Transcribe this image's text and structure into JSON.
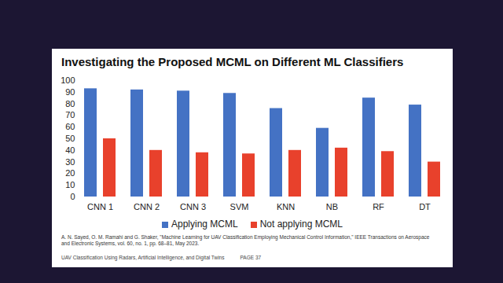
{
  "chart_data": {
    "type": "bar",
    "title": "Investigating the Proposed MCML on Different ML Classifiers",
    "categories": [
      "CNN 1",
      "CNN 2",
      "CNN 3",
      "SVM",
      "KNN",
      "NB",
      "RF",
      "DT"
    ],
    "series": [
      {
        "name": "Applying MCML",
        "color": "#4472c4",
        "values": [
          93,
          92,
          91,
          89,
          76,
          59,
          85,
          79
        ]
      },
      {
        "name": "Not applying MCML",
        "color": "#e8412c",
        "values": [
          50,
          40,
          38,
          37,
          40,
          42,
          39,
          30
        ]
      }
    ],
    "ylim": [
      0,
      100
    ],
    "yticks": [
      0,
      10,
      20,
      30,
      40,
      50,
      60,
      70,
      80,
      90,
      100
    ],
    "grid": false,
    "legend": "bottom",
    "annotations": [
      "A. N. Sayed, O. M. Ramahi and G. Shaker, \"Machine Learning for UAV Classification Employing Mechanical Control Information,\" IEEE Transactions on Aerospace and Electronic Systems, vol. 60, no. 1, pp. 68–81, May 2023.",
      "UAV Classification Using Radars, Artificial Intelligence, and Digital Twins",
      "PAGE 37"
    ]
  }
}
